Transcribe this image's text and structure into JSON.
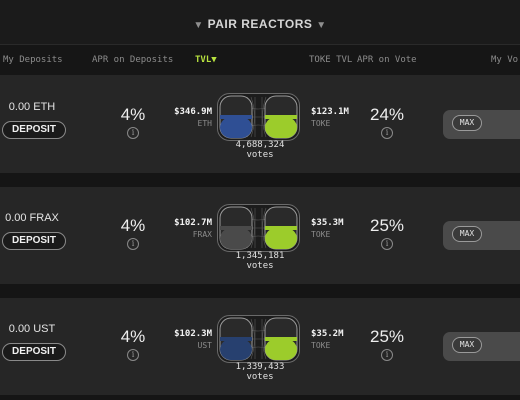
{
  "header": {
    "title": "PAIR REACTORS",
    "columns": {
      "my_deposits": "My Deposits",
      "apr_on_deposits": "APR on Deposits",
      "tvl": "TVL",
      "toke_tvl": "TOKE TVL",
      "apr_on_vote": "APR on Vote",
      "my_vote": "My Vo"
    }
  },
  "colors": {
    "accent": "#b8e23f",
    "eth_blue": "#2f4f94",
    "frax_gray": "#4a4a4a",
    "ust_blue": "#27406f",
    "toke_green": "#9ccc2b"
  },
  "rows": [
    {
      "deposit_amount": "0.00 ETH",
      "deposit_label": "DEPOSIT",
      "apr": "4%",
      "tvl_value": "$346.9M",
      "tvl_symbol": "ETH",
      "votes_count": "4,688,324",
      "votes_label": "votes",
      "toke_value": "$123.1M",
      "toke_symbol": "TOKE",
      "toke_apr": "24%",
      "max_label": "MAX",
      "token_color": "#2f4f94",
      "token_fill": 0.5,
      "toke_fill": 0.5
    },
    {
      "deposit_amount": "0.00 FRAX",
      "deposit_label": "DEPOSIT",
      "apr": "4%",
      "tvl_value": "$102.7M",
      "tvl_symbol": "FRAX",
      "votes_count": "1,345,181",
      "votes_label": "votes",
      "toke_value": "$35.3M",
      "toke_symbol": "TOKE",
      "toke_apr": "25%",
      "max_label": "MAX",
      "token_color": "#4a4a4a",
      "token_fill": 0.5,
      "toke_fill": 0.5
    },
    {
      "deposit_amount": "0.00 UST",
      "deposit_label": "DEPOSIT",
      "apr": "4%",
      "tvl_value": "$102.3M",
      "tvl_symbol": "UST",
      "votes_count": "1,339,433",
      "votes_label": "votes",
      "toke_value": "$35.2M",
      "toke_symbol": "TOKE",
      "toke_apr": "25%",
      "max_label": "MAX",
      "token_color": "#27406f",
      "token_fill": 0.5,
      "toke_fill": 0.5
    }
  ]
}
